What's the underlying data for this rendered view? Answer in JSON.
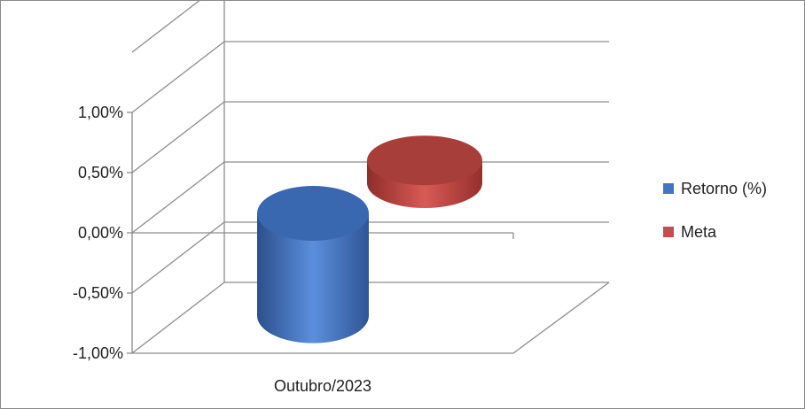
{
  "chart_data": {
    "type": "bar",
    "title": "",
    "xlabel": "",
    "ylabel": "",
    "categories": [
      "Outubro/2023"
    ],
    "series": [
      {
        "name": "Retorno (%)",
        "values": [
          -0.85
        ],
        "color": "#4472C4"
      },
      {
        "name": "Meta",
        "values": [
          0.55
        ],
        "color": "#C0504D"
      }
    ],
    "ylim": [
      -1.0,
      1.5
    ],
    "yticks": [
      -1.0,
      -0.5,
      0.0,
      0.5,
      1.0
    ],
    "ytick_labels": [
      "-1,00%",
      "-0,50%",
      "0,00%",
      "0,50%",
      "1,00%"
    ],
    "grid": true,
    "legend": "right",
    "style": "3d-cylinder"
  }
}
